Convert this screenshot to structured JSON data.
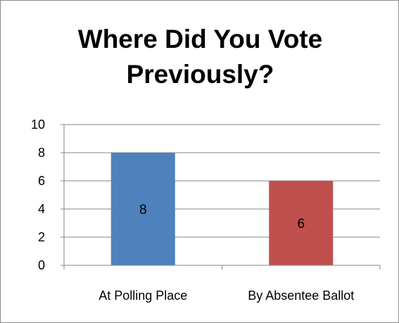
{
  "chart_data": {
    "type": "bar",
    "title_lines": [
      "Where Did You Vote",
      "Previously?"
    ],
    "categories": [
      "At Polling Place",
      "By Absentee Ballot"
    ],
    "values": [
      8,
      6
    ],
    "colors": [
      "#4f81bd",
      "#c0504d"
    ],
    "data_labels": [
      "8",
      "6"
    ],
    "ylim": [
      0,
      10
    ],
    "yticks": [
      0,
      2,
      4,
      6,
      8,
      10
    ],
    "ytick_labels": [
      "0",
      "2",
      "4",
      "6",
      "8",
      "10"
    ],
    "grid": true,
    "legend": "none"
  }
}
